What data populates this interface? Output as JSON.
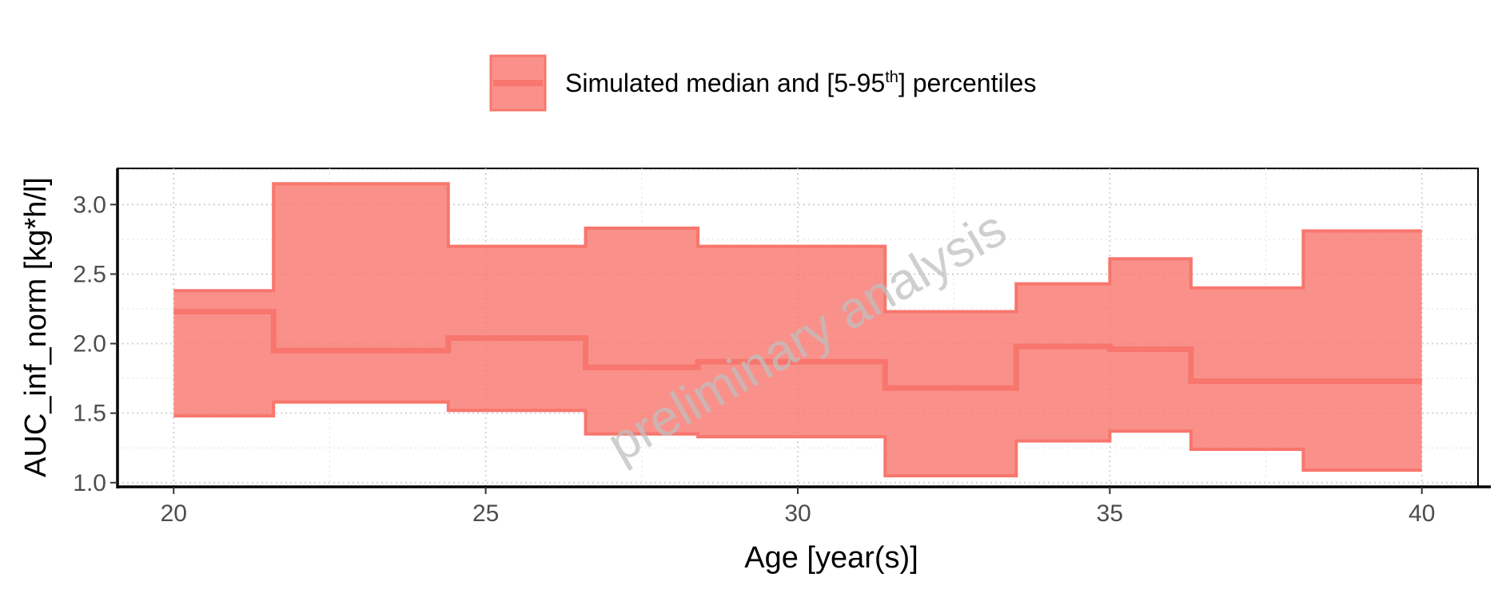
{
  "chart_data": {
    "type": "area",
    "title": "",
    "xlabel": "Age [year(s)]",
    "ylabel": "AUC_inf_norm [kg*h/l]",
    "xlim": [
      19.1,
      40.9
    ],
    "ylim": [
      0.97,
      3.26
    ],
    "xticks": [
      20,
      25,
      30,
      35,
      40
    ],
    "yticks": [
      1.0,
      1.5,
      2.0,
      2.5,
      3.0
    ],
    "xtick_labels": [
      "20",
      "25",
      "30",
      "35",
      "40"
    ],
    "ytick_labels": [
      "1.0",
      "1.5",
      "2.0",
      "2.5",
      "3.0"
    ],
    "grid": true,
    "step": true,
    "legend": {
      "position": "top",
      "label_main": "Simulated median and [5-95",
      "label_sup": "th",
      "label_end": "] percentiles"
    },
    "watermark": "preliminary analysis",
    "colors": {
      "band_fill": "#F8766D",
      "band_line": "#F8766D",
      "median": "#F8766D"
    },
    "bin_edges": [
      20,
      21.6,
      24.4,
      26.6,
      28.4,
      31.4,
      33.5,
      35.0,
      36.3,
      38.1,
      40
    ],
    "series": [
      {
        "name": "Simulated median",
        "values": [
          2.23,
          1.95,
          2.04,
          1.83,
          1.87,
          1.68,
          1.98,
          1.96,
          1.73,
          1.73
        ]
      },
      {
        "name": "5th percentile",
        "values": [
          1.48,
          1.58,
          1.52,
          1.35,
          1.33,
          1.05,
          1.3,
          1.37,
          1.24,
          1.09
        ]
      },
      {
        "name": "95th percentile",
        "values": [
          2.38,
          3.15,
          2.7,
          2.83,
          2.7,
          2.23,
          2.43,
          2.61,
          2.4,
          2.81
        ]
      }
    ]
  }
}
